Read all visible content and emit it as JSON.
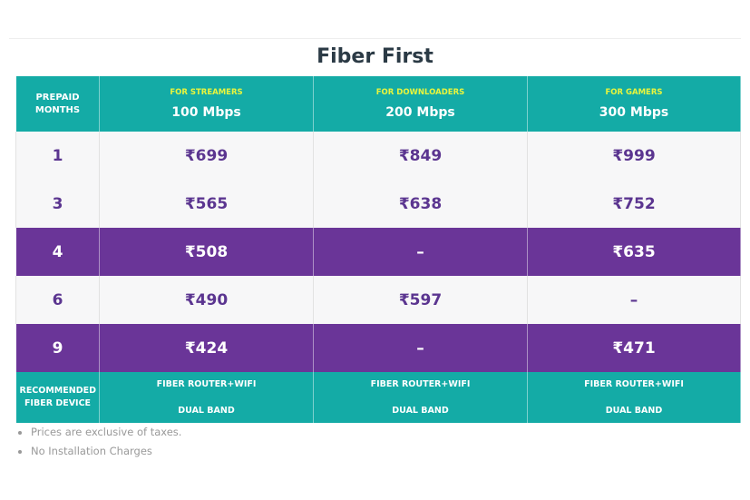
{
  "title": "Fiber First",
  "header": {
    "months_label": "PREPAID MONTHS",
    "plans": [
      {
        "tag": "FOR STREAMERS",
        "speed": "100 Mbps"
      },
      {
        "tag": "FOR DOWNLOADERS",
        "speed": "200 Mbps"
      },
      {
        "tag": "FOR GAMERS",
        "speed": "300 Mbps"
      }
    ]
  },
  "rows": [
    {
      "months": "1",
      "prices": [
        "₹699",
        "₹849",
        "₹999"
      ],
      "style": "light"
    },
    {
      "months": "3",
      "prices": [
        "₹565",
        "₹638",
        "₹752"
      ],
      "style": "light"
    },
    {
      "months": "4",
      "prices": [
        "₹508",
        "–",
        "₹635"
      ],
      "style": "dark"
    },
    {
      "months": "6",
      "prices": [
        "₹490",
        "₹597",
        "–"
      ],
      "style": "light"
    },
    {
      "months": "9",
      "prices": [
        "₹424",
        "–",
        "₹471"
      ],
      "style": "dark"
    }
  ],
  "device": {
    "label": "RECOMMENDED FIBER DEVICE",
    "items": [
      {
        "line1": "FIBER ROUTER+WIFI",
        "line2": "DUAL BAND"
      },
      {
        "line1": "FIBER ROUTER+WIFI",
        "line2": "DUAL BAND"
      },
      {
        "line1": "FIBER ROUTER+WIFI",
        "line2": "DUAL BAND"
      }
    ]
  },
  "notes": [
    "Prices are exclusive of taxes.",
    "No Installation Charges"
  ],
  "colors": {
    "teal": "#14aba6",
    "purple": "#6a3598",
    "price_text": "#5b3590",
    "tag_yellow": "#eaf53c"
  }
}
